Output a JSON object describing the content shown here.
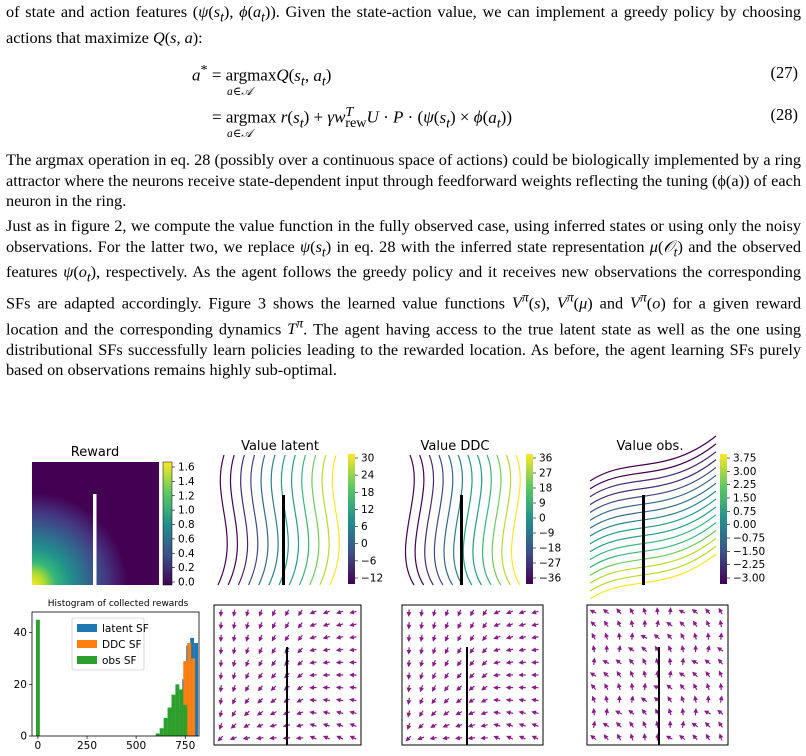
{
  "paragraphs": {
    "p0": "of state and action features (ψ(s_t), ϕ(a_t)). Given the state-action value, we can implement a greedy policy by choosing actions that maximize Q(s, a):",
    "p1": "The argmax operation in eq. 28 (possibly over a continuous space of actions) could be biologically implemented by a ring attractor where the neurons receive state-dependent input through feedforward weights reflecting the tuning (ϕ(a)) of each neuron in the ring.",
    "p2": "Just as in figure 2, we compute the value function in the fully observed case, using inferred states or using only the noisy observations. For the latter two, we replace ψ(s_t) in eq. 28 with the inferred state representation μ(O_t) and the observed features ψ(o_t), respectively. As the agent follows the greedy policy and it receives new observations the corresponding SFs are adapted accordingly. Figure 3 shows the learned value functions V^π(s), V^π(μ) and V^π(o) for a given reward location and the corresponding dynamics T^π. The agent having access to the true latent state as well as the one using distributional SFs successfully learn policies leading to the rewarded location. As before, the agent learning SFs purely based on observations remains highly sub-optimal."
  },
  "equations": {
    "eq27": {
      "lhs": "a* = ",
      "rhs": "argmax Q(s_t, a_t)",
      "sub": "a∈𝒜",
      "num": "(27)"
    },
    "eq28": {
      "lhs": "= ",
      "rhs": "argmax r(s_t) + γ w_rew^T U · P · (ψ(s_t) × ϕ(a_t))",
      "sub": "a∈𝒜",
      "num": "(28)"
    }
  },
  "figure": {
    "panels": {
      "reward": {
        "title": "Reward",
        "colorbar": [
          "1.6",
          "1.4",
          "1.2",
          "1.0",
          "0.8",
          "0.6",
          "0.4",
          "0.2",
          "0.0"
        ]
      },
      "value_latent": {
        "title": "Value latent",
        "colorbar": [
          "30",
          "24",
          "18",
          "12",
          "6",
          "0",
          "−6",
          "−12"
        ]
      },
      "value_ddc": {
        "title": "Value DDC",
        "colorbar": [
          "36",
          "27",
          "18",
          "9",
          "0",
          "−9",
          "−18",
          "−27",
          "−36"
        ]
      },
      "value_obs": {
        "title": "Value obs.",
        "colorbar": [
          "3.75",
          "3.00",
          "2.25",
          "1.50",
          "0.75",
          "0.00",
          "−0.75",
          "−1.50",
          "−2.25",
          "−3.00"
        ]
      }
    },
    "colors": {
      "viridis_dark": "#440154",
      "viridis_yellow": "#fde725",
      "arrow": "#8b1a8b"
    }
  },
  "chart_data": {
    "type": "bar",
    "title": "Histogram of collected rewards",
    "xlabel": "",
    "ylabel": "",
    "xlim": [
      -30,
      820
    ],
    "ylim": [
      0,
      48
    ],
    "xticks": [
      "0",
      "250",
      "500",
      "750"
    ],
    "yticks": [
      "0",
      "20",
      "40"
    ],
    "legend_position": "top-center",
    "series": [
      {
        "name": "latent SF",
        "color": "#1f77b4",
        "bars": [
          [
            725,
            10
          ],
          [
            745,
            22
          ],
          [
            765,
            35
          ],
          [
            785,
            38
          ],
          [
            805,
            36
          ]
        ]
      },
      {
        "name": "DDC SF",
        "color": "#ff7f0e",
        "bars": [
          [
            690,
            4
          ],
          [
            710,
            9
          ],
          [
            730,
            18
          ],
          [
            750,
            29
          ],
          [
            770,
            36
          ],
          [
            790,
            30
          ]
        ]
      },
      {
        "name": "obs SF",
        "color": "#2ca02c",
        "bars": [
          [
            0,
            45
          ],
          [
            610,
            1
          ],
          [
            630,
            3
          ],
          [
            650,
            7
          ],
          [
            670,
            11
          ],
          [
            690,
            16
          ],
          [
            710,
            20
          ],
          [
            730,
            18
          ],
          [
            750,
            12
          ]
        ]
      }
    ]
  }
}
